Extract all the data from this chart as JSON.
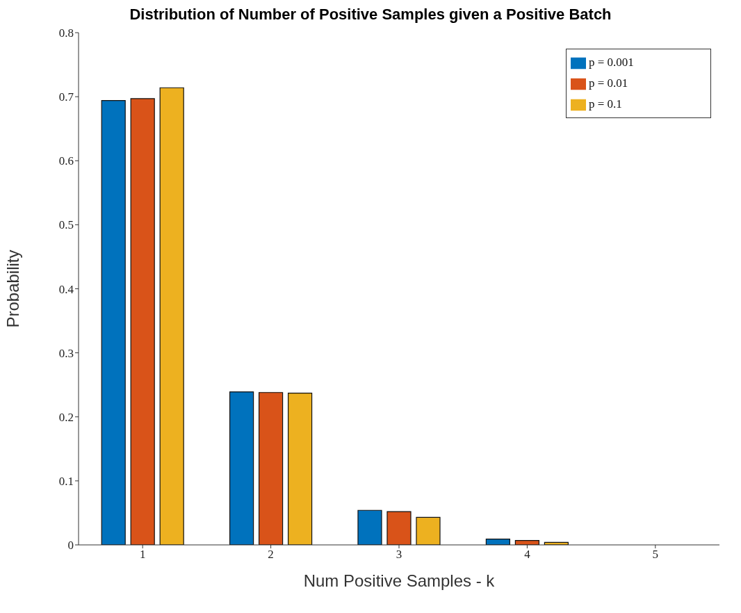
{
  "chart_data": {
    "type": "bar",
    "title": "Distribution of Number of Positive Samples given a Positive Batch",
    "xlabel": "Num Positive Samples - k",
    "ylabel": "Probability",
    "categories": [
      "1",
      "2",
      "3",
      "4",
      "5"
    ],
    "series": [
      {
        "name": "p = 0.001",
        "color": "#0072bd",
        "values": [
          0.694,
          0.239,
          0.054,
          0.009,
          0
        ]
      },
      {
        "name": "p = 0.01",
        "color": "#d95319",
        "values": [
          0.697,
          0.238,
          0.052,
          0.007,
          0
        ]
      },
      {
        "name": "p = 0.1",
        "color": "#edb120",
        "values": [
          0.714,
          0.237,
          0.043,
          0.004,
          0
        ]
      }
    ],
    "ylim": [
      0,
      0.8
    ],
    "yticks": [
      0,
      0.1,
      0.2,
      0.3,
      0.4,
      0.5,
      0.6,
      0.7,
      0.8
    ],
    "grid": false,
    "legend": "top right"
  }
}
